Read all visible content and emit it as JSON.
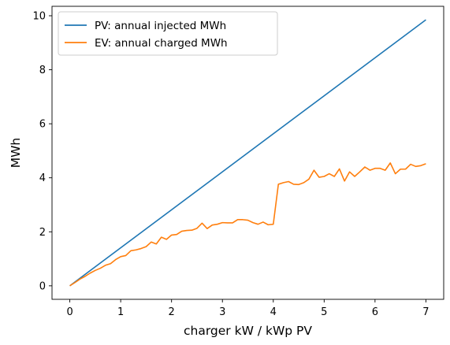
{
  "chart_data": {
    "type": "line",
    "title": "",
    "xlabel": "charger kW / kWp PV",
    "ylabel": "MWh",
    "xlim": [
      -0.35,
      7.35
    ],
    "ylim": [
      -0.5,
      10.35
    ],
    "xticks": [
      0,
      1,
      2,
      3,
      4,
      5,
      6,
      7
    ],
    "yticks": [
      0,
      2,
      4,
      6,
      8,
      10
    ],
    "grid": false,
    "legend_position": "top-left",
    "series": [
      {
        "name": "PV: annual injected MWh",
        "color": "#1f77b4",
        "x": [
          0,
          7
        ],
        "y": [
          0,
          9.85
        ]
      },
      {
        "name": "EV: annual charged MWh",
        "color": "#ff7f0e",
        "x": [
          0,
          0.1,
          0.2,
          0.3,
          0.4,
          0.5,
          0.6,
          0.7,
          0.8,
          0.9,
          1.0,
          1.1,
          1.2,
          1.3,
          1.4,
          1.5,
          1.6,
          1.7,
          1.8,
          1.9,
          2.0,
          2.1,
          2.2,
          2.3,
          2.4,
          2.5,
          2.6,
          2.7,
          2.8,
          2.9,
          3.0,
          3.1,
          3.2,
          3.3,
          3.4,
          3.5,
          3.6,
          3.7,
          3.8,
          3.9,
          4.0,
          4.1,
          4.2,
          4.3,
          4.4,
          4.5,
          4.6,
          4.7,
          4.8,
          4.9,
          5.0,
          5.1,
          5.2,
          5.3,
          5.4,
          5.5,
          5.6,
          5.7,
          5.8,
          5.9,
          6.0,
          6.1,
          6.2,
          6.3,
          6.4,
          6.5,
          6.6,
          6.7,
          6.8,
          6.9,
          7.0
        ],
        "y": [
          0,
          0.12,
          0.25,
          0.35,
          0.47,
          0.57,
          0.65,
          0.76,
          0.82,
          0.97,
          1.08,
          1.12,
          1.3,
          1.33,
          1.38,
          1.45,
          1.62,
          1.55,
          1.8,
          1.72,
          1.88,
          1.9,
          2.02,
          2.05,
          2.06,
          2.13,
          2.32,
          2.12,
          2.25,
          2.28,
          2.34,
          2.33,
          2.33,
          2.45,
          2.45,
          2.43,
          2.34,
          2.28,
          2.36,
          2.26,
          2.28,
          3.76,
          3.82,
          3.86,
          3.76,
          3.75,
          3.82,
          3.95,
          4.28,
          4.02,
          4.05,
          4.15,
          4.05,
          4.33,
          3.88,
          4.22,
          4.05,
          4.22,
          4.4,
          4.28,
          4.35,
          4.35,
          4.28,
          4.55,
          4.15,
          4.32,
          4.32,
          4.5,
          4.42,
          4.45,
          4.52
        ]
      }
    ]
  }
}
